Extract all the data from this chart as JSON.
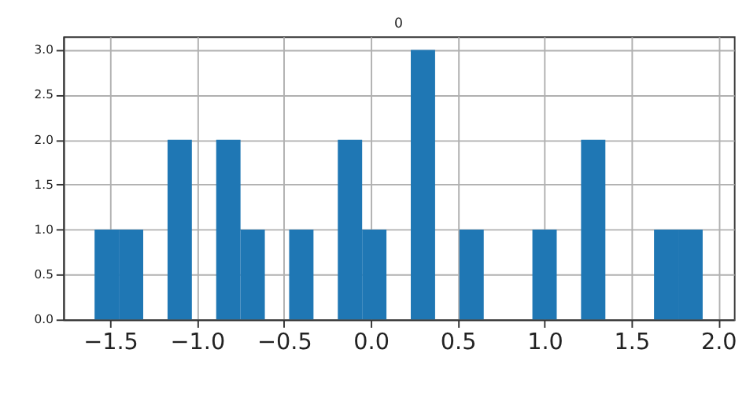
{
  "chart_data": {
    "type": "histogram",
    "title": "0",
    "bins": [
      -1.59,
      -1.45,
      -1.31,
      -1.17,
      -1.03,
      -0.89,
      -0.75,
      -0.61,
      -0.47,
      -0.33,
      -0.19,
      -0.05,
      0.09,
      0.23,
      0.37,
      0.51,
      0.65,
      0.79,
      0.93,
      1.07,
      1.21,
      1.35,
      1.49,
      1.63,
      1.77,
      1.91
    ],
    "values": [
      1,
      1,
      0,
      2,
      0,
      2,
      1,
      0,
      1,
      0,
      2,
      1,
      0,
      3,
      0,
      1,
      0,
      0,
      1,
      0,
      2,
      0,
      0,
      1,
      1
    ],
    "color": "#1f77b4",
    "xlim": [
      -1.77,
      2.09
    ],
    "xticks": [
      {
        "value": -1.5,
        "label": "−1.5"
      },
      {
        "value": -1.0,
        "label": "−1.0"
      },
      {
        "value": -0.5,
        "label": "−0.5"
      },
      {
        "value": 0.0,
        "label": "0.0"
      },
      {
        "value": 0.5,
        "label": "0.5"
      },
      {
        "value": 1.0,
        "label": "1.0"
      },
      {
        "value": 1.5,
        "label": "1.5"
      },
      {
        "value": 2.0,
        "label": "2.0"
      }
    ],
    "ylim": [
      0,
      3.15
    ],
    "yticks": [
      {
        "value": 0,
        "label": "0.0"
      },
      {
        "value": 0.5,
        "label": "0.5"
      },
      {
        "value": 1.0,
        "label": "1.0"
      },
      {
        "value": 1.5,
        "label": "1.5"
      },
      {
        "value": 2.0,
        "label": "2.0"
      },
      {
        "value": 2.5,
        "label": "2.5"
      },
      {
        "value": 3.0,
        "label": "3.0"
      }
    ],
    "grid": true
  }
}
